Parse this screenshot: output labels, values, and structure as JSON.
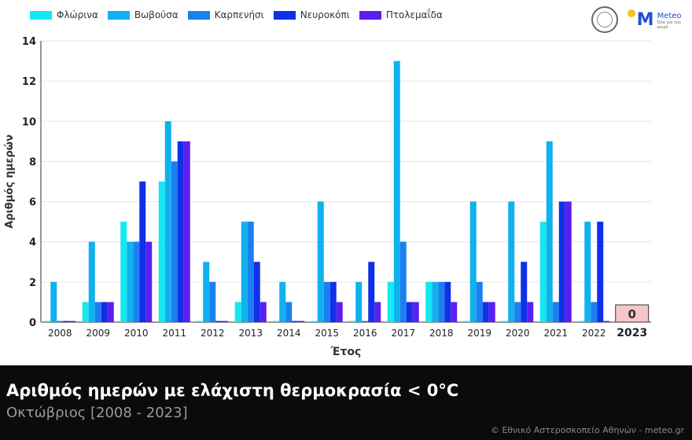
{
  "legend": [
    {
      "name": "Φλώρινα",
      "color": "#14e8f0"
    },
    {
      "name": "Βωβούσα",
      "color": "#0fb1ee"
    },
    {
      "name": "Καρπενήσι",
      "color": "#1b7ff0"
    },
    {
      "name": "Νευροκόπι",
      "color": "#1030e8"
    },
    {
      "name": "Πτολεμαΐδα",
      "color": "#5a1ef0"
    }
  ],
  "footer": {
    "title": "Αριθμός ημερών με ελάχιστη θερμοκρασία < 0°C",
    "subtitle": "Οκτώβριος [2008 - 2023]",
    "credit": "© Εθνικό Αστεροσκοπείο Αθηνών - meteo.gr"
  },
  "logo": {
    "word": "Meteo",
    "tagline": "Όλα για τον καιρό"
  },
  "chart_data": {
    "type": "bar",
    "xlabel": "Έτος",
    "ylabel": "Αριθμός ημερών",
    "ylim": [
      0,
      14
    ],
    "yticks": [
      0,
      2,
      4,
      6,
      8,
      10,
      12,
      14
    ],
    "grid": true,
    "legend_position": "top-left",
    "categories": [
      "2008",
      "2009",
      "2010",
      "2011",
      "2012",
      "2013",
      "2014",
      "2015",
      "2016",
      "2017",
      "2018",
      "2019",
      "2020",
      "2021",
      "2022",
      "2023"
    ],
    "highlight_category": "2023",
    "highlight_label": "0",
    "series": [
      {
        "name": "Φλώρινα",
        "values": [
          0,
          1,
          5,
          7,
          0,
          1,
          0,
          0,
          0,
          2,
          2,
          0,
          0,
          5,
          0,
          0
        ]
      },
      {
        "name": "Βωβούσα",
        "values": [
          2,
          4,
          4,
          10,
          3,
          5,
          2,
          6,
          2,
          13,
          2,
          6,
          6,
          9,
          5,
          0
        ]
      },
      {
        "name": "Καρπενήσι",
        "values": [
          0,
          1,
          4,
          8,
          2,
          5,
          1,
          2,
          0,
          4,
          2,
          2,
          1,
          1,
          1,
          0
        ]
      },
      {
        "name": "Νευροκόπι",
        "values": [
          0,
          1,
          7,
          9,
          0,
          3,
          0,
          2,
          3,
          1,
          2,
          1,
          3,
          6,
          5,
          0
        ]
      },
      {
        "name": "Πτολεμαΐδα",
        "values": [
          0,
          1,
          4,
          9,
          0,
          1,
          0,
          1,
          1,
          1,
          1,
          1,
          1,
          6,
          0,
          0
        ]
      }
    ]
  }
}
